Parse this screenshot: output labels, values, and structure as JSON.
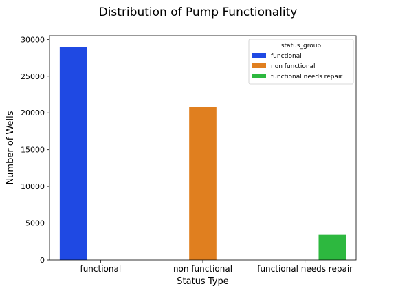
{
  "chart_data": {
    "type": "bar",
    "title": "Distribution of Pump Functionality",
    "xlabel": "Status Type",
    "ylabel": "Number of Wells",
    "categories": [
      "functional",
      "non functional",
      "functional needs repair"
    ],
    "ylim": [
      0,
      30500
    ],
    "yticks": [
      0,
      5000,
      10000,
      15000,
      20000,
      25000,
      30000
    ],
    "grid": false,
    "legend": {
      "title": "status_group",
      "placement": "top-right"
    },
    "series": [
      {
        "name": "functional",
        "color": "#1f49e3",
        "values": [
          29000,
          0,
          0
        ]
      },
      {
        "name": "non functional",
        "color": "#e07f1f",
        "values": [
          0,
          20800,
          0
        ]
      },
      {
        "name": "functional needs repair",
        "color": "#2db83f",
        "values": [
          0,
          0,
          3400
        ]
      }
    ]
  }
}
